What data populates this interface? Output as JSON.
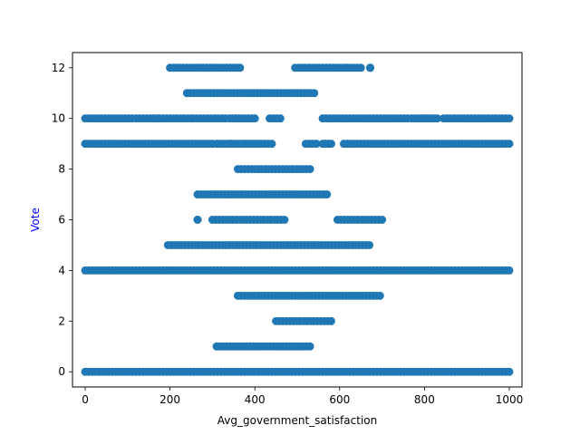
{
  "chart_data": {
    "type": "scatter",
    "title": "",
    "xlabel": "Avg_government_satisfaction",
    "ylabel": "Vote",
    "xlim": [
      -30,
      1030
    ],
    "ylim": [
      -0.6,
      12.6
    ],
    "xticks": [
      0,
      200,
      400,
      600,
      800,
      1000
    ],
    "yticks": [
      0,
      2,
      4,
      6,
      8,
      10,
      12
    ],
    "grid": false,
    "legend": "none",
    "colors": {
      "points": "#1f77b4",
      "ylabel": "#0000ff",
      "axes": "#000000"
    },
    "series": [
      {
        "points_by_vote": [
          {
            "vote": 12,
            "x_ranges": [
              [
                200,
                365
              ],
              [
                495,
                650
              ],
              [
                672,
                672
              ]
            ]
          },
          {
            "vote": 11,
            "x_ranges": [
              [
                240,
                540
              ]
            ]
          },
          {
            "vote": 10,
            "x_ranges": [
              [
                0,
                110
              ],
              [
                120,
                170
              ],
              [
                175,
                250
              ],
              [
                255,
                330
              ],
              [
                340,
                400
              ],
              [
                435,
                460
              ],
              [
                560,
                760
              ],
              [
                770,
                830
              ],
              [
                845,
                1000
              ]
            ]
          },
          {
            "vote": 9,
            "x_ranges": [
              [
                0,
                300
              ],
              [
                310,
                340
              ],
              [
                345,
                375
              ],
              [
                380,
                410
              ],
              [
                415,
                440
              ],
              [
                520,
                545
              ],
              [
                560,
                580
              ],
              [
                610,
                1000
              ]
            ]
          },
          {
            "vote": 8,
            "x_ranges": [
              [
                360,
                530
              ]
            ]
          },
          {
            "vote": 7,
            "x_ranges": [
              [
                265,
                570
              ]
            ]
          },
          {
            "vote": 6,
            "x_ranges": [
              [
                265,
                265
              ],
              [
                300,
                470
              ],
              [
                595,
                700
              ]
            ]
          },
          {
            "vote": 5,
            "x_ranges": [
              [
                195,
                670
              ]
            ]
          },
          {
            "vote": 4,
            "x_ranges": [
              [
                0,
                1000
              ]
            ]
          },
          {
            "vote": 3,
            "x_ranges": [
              [
                360,
                695
              ]
            ]
          },
          {
            "vote": 2,
            "x_ranges": [
              [
                450,
                580
              ]
            ]
          },
          {
            "vote": 1,
            "x_ranges": [
              [
                310,
                530
              ]
            ]
          },
          {
            "vote": 0,
            "x_ranges": [
              [
                0,
                1000
              ]
            ]
          }
        ]
      }
    ]
  }
}
